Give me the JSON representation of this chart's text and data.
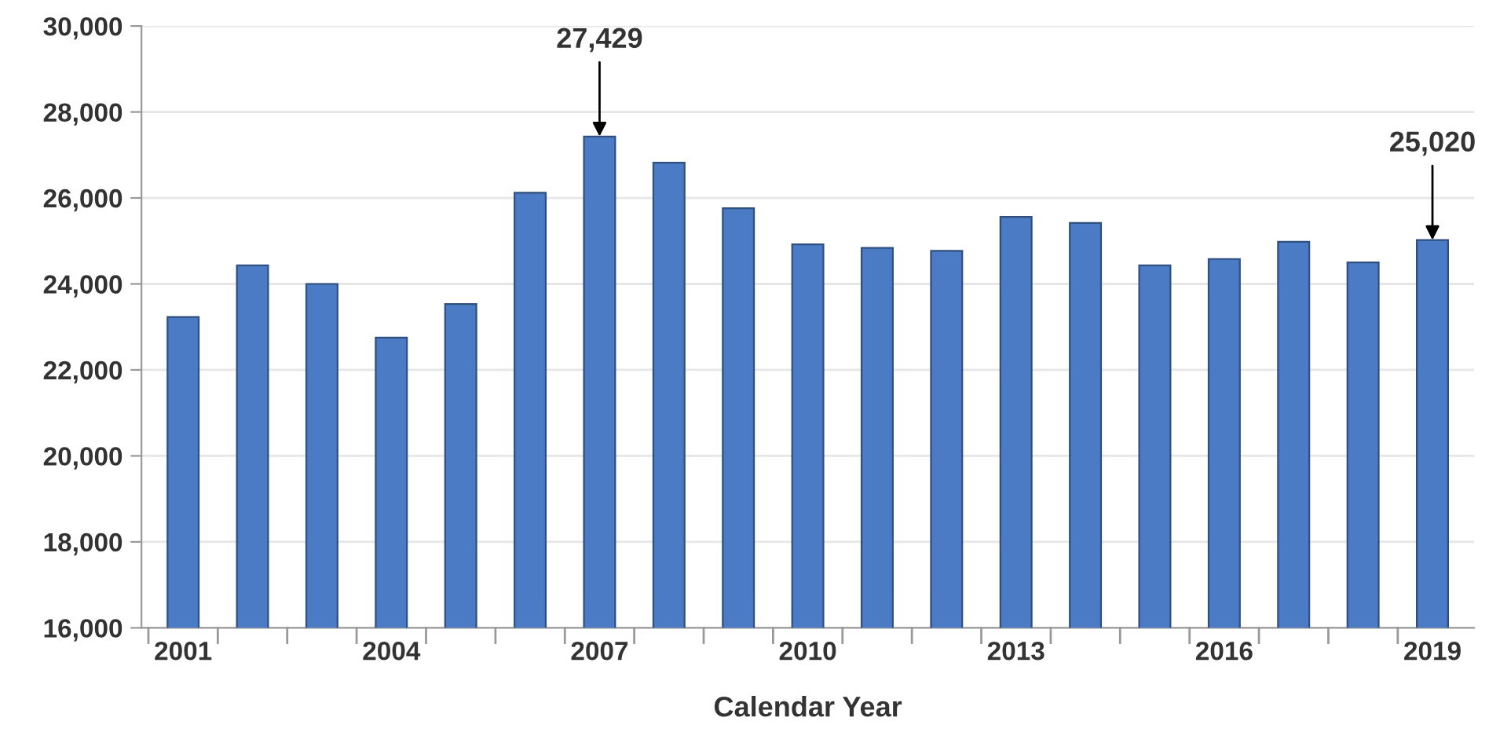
{
  "chart_data": {
    "type": "bar",
    "xlabel": "Calendar Year",
    "categories": [
      "2001",
      null,
      null,
      "2004",
      null,
      null,
      "2007",
      null,
      null,
      "2010",
      null,
      null,
      "2013",
      null,
      null,
      "2016",
      null,
      null,
      "2019"
    ],
    "values": [
      23230,
      24430,
      24000,
      22750,
      23530,
      26120,
      27429,
      26820,
      25760,
      24920,
      24840,
      24770,
      25560,
      25420,
      24430,
      24580,
      24980,
      24500,
      25020
    ],
    "color": "#4a7bc4",
    "ylim": [
      16000,
      30000
    ],
    "yticks": [
      {
        "value": 16000,
        "label": "16,000"
      },
      {
        "value": 18000,
        "label": "18,000"
      },
      {
        "value": 20000,
        "label": "20,000"
      },
      {
        "value": 22000,
        "label": "22,000"
      },
      {
        "value": 24000,
        "label": "24,000"
      },
      {
        "value": 26000,
        "label": "26,000"
      },
      {
        "value": 28000,
        "label": "28,000"
      },
      {
        "value": 30000,
        "label": "30,000"
      }
    ],
    "grid": "y",
    "annotations": [
      {
        "text": "27,429",
        "x": "2007",
        "y": 27429
      },
      {
        "text": "25,020",
        "x": "2019",
        "y": 25020
      }
    ]
  }
}
